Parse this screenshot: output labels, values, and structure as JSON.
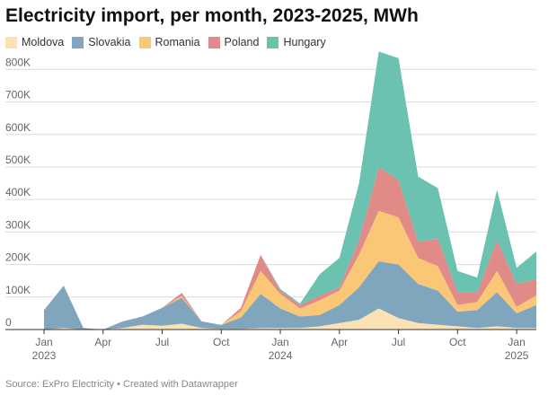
{
  "header": {
    "title": "Electricity import, per month, 2023-2025, MWh"
  },
  "footer": {
    "text": "Source: ExPro Electricity • Created with Datawrapper"
  },
  "colors": {
    "Moldova": "#fbe2b5",
    "Slovakia": "#80a6bd",
    "Romania": "#fac777",
    "Poland": "#e08b87",
    "Hungary": "#6cc2b0",
    "grid": "#dcdcdc",
    "axis": "#333333"
  },
  "chart_data": {
    "type": "area",
    "stacked": true,
    "title": "Electricity import, per month, 2023-2025, MWh",
    "xlabel": "",
    "ylabel": "MWh",
    "ylim": [
      0,
      870000
    ],
    "yticks": [
      0,
      100000,
      200000,
      300000,
      400000,
      500000,
      600000,
      700000,
      800000
    ],
    "ytick_labels": [
      "0",
      "100K",
      "200K",
      "300K",
      "400K",
      "500K",
      "600K",
      "700K",
      "800K"
    ],
    "grid": true,
    "legend": "top-left",
    "x": [
      "2023-01",
      "2023-02",
      "2023-03",
      "2023-04",
      "2023-05",
      "2023-06",
      "2023-07",
      "2023-08",
      "2023-09",
      "2023-10",
      "2023-11",
      "2023-12",
      "2024-01",
      "2024-02",
      "2024-03",
      "2024-04",
      "2024-05",
      "2024-06",
      "2024-07",
      "2024-08",
      "2024-09",
      "2024-10",
      "2024-11",
      "2024-12",
      "2025-01",
      "2025-02"
    ],
    "xticks": [
      {
        "index": 0,
        "label": "Jan",
        "year": "2023"
      },
      {
        "index": 3,
        "label": "Apr",
        "year": ""
      },
      {
        "index": 6,
        "label": "Jul",
        "year": ""
      },
      {
        "index": 9,
        "label": "Oct",
        "year": ""
      },
      {
        "index": 12,
        "label": "Jan",
        "year": "2024"
      },
      {
        "index": 15,
        "label": "Apr",
        "year": ""
      },
      {
        "index": 18,
        "label": "Jul",
        "year": ""
      },
      {
        "index": 21,
        "label": "Oct",
        "year": ""
      },
      {
        "index": 24,
        "label": "Jan",
        "year": "2025"
      }
    ],
    "series": [
      {
        "name": "Moldova",
        "values": [
          0,
          5000,
          0,
          0,
          5000,
          15000,
          12000,
          18000,
          5000,
          2000,
          2000,
          5000,
          5000,
          5000,
          10000,
          20000,
          30000,
          65000,
          35000,
          20000,
          15000,
          10000,
          5000,
          10000,
          5000,
          5000
        ]
      },
      {
        "name": "Slovakia",
        "values": [
          60000,
          130000,
          5000,
          0,
          20000,
          25000,
          55000,
          80000,
          20000,
          12000,
          35000,
          105000,
          60000,
          35000,
          35000,
          55000,
          100000,
          145000,
          165000,
          120000,
          105000,
          45000,
          55000,
          105000,
          45000,
          70000
        ]
      },
      {
        "name": "Romania",
        "values": [
          0,
          0,
          0,
          0,
          0,
          0,
          0,
          5000,
          0,
          0,
          20000,
          70000,
          45000,
          25000,
          45000,
          45000,
          100000,
          155000,
          145000,
          80000,
          75000,
          20000,
          25000,
          65000,
          20000,
          30000
        ]
      },
      {
        "name": "Poland",
        "values": [
          0,
          0,
          0,
          0,
          0,
          0,
          0,
          10000,
          0,
          0,
          10000,
          50000,
          10000,
          10000,
          15000,
          10000,
          45000,
          135000,
          115000,
          50000,
          85000,
          40000,
          30000,
          95000,
          70000,
          50000
        ]
      },
      {
        "name": "Hungary",
        "values": [
          0,
          0,
          0,
          0,
          0,
          0,
          0,
          0,
          0,
          0,
          0,
          0,
          5000,
          5000,
          65000,
          90000,
          175000,
          355000,
          375000,
          200000,
          155000,
          65000,
          45000,
          155000,
          50000,
          85000
        ]
      }
    ]
  }
}
